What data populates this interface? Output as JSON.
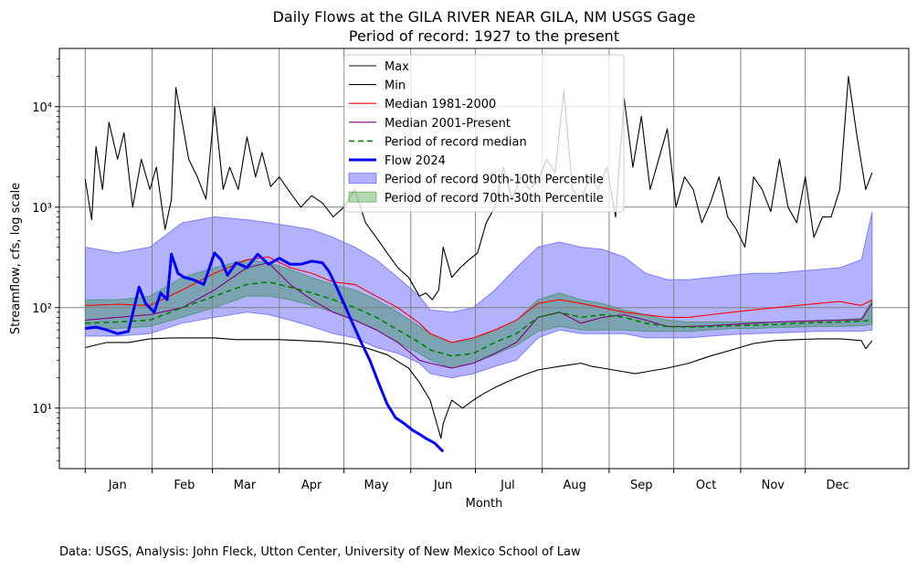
{
  "chart_data": {
    "type": "line",
    "title": "Daily Flows at the GILA RIVER NEAR GILA, NM USGS Gage",
    "subtitle": "Period of record: 1927 to the present",
    "xlabel": "Month",
    "ylabel": "Streamflow, cfs, log scale",
    "y_scale": "log",
    "ylim": [
      2.5,
      38000
    ],
    "xlim": [
      -12,
      382
    ],
    "grid": true,
    "legend_position": "top-center",
    "month_ticks": [
      "Jan",
      "Feb",
      "Mar",
      "Apr",
      "May",
      "Jun",
      "Jul",
      "Aug",
      "Sep",
      "Oct",
      "Nov",
      "Dec"
    ],
    "month_tick_days": [
      15,
      46,
      74,
      105,
      135,
      166,
      196,
      227,
      258,
      288,
      319,
      349
    ],
    "month_boundaries": [
      0,
      31,
      59,
      90,
      120,
      151,
      181,
      212,
      243,
      273,
      304,
      334
    ],
    "y_tick_labels": [
      "10¹",
      "10²",
      "10³",
      "10⁴"
    ],
    "y_tick_values": [
      10,
      100,
      1000,
      10000
    ],
    "colors": {
      "max": "#000000",
      "min": "#000000",
      "median_1981_2000": "#ff0000",
      "median_2001_present": "#800080",
      "period_median": "#008000",
      "flow_2024": "#0000ff",
      "band_90_10": "#0000ff",
      "band_70_30": "#008000",
      "grid": "#808080"
    },
    "series": [
      {
        "name": "Max",
        "key": "max",
        "x": [
          0,
          3,
          5,
          8,
          11,
          15,
          18,
          22,
          26,
          30,
          33,
          37,
          40,
          42,
          45,
          48,
          52,
          56,
          60,
          64,
          67,
          71,
          75,
          79,
          82,
          86,
          90,
          95,
          100,
          105,
          110,
          115,
          120,
          125,
          130,
          135,
          140,
          145,
          150,
          155,
          158,
          161,
          164,
          166,
          170,
          174,
          178,
          182,
          186,
          190,
          194,
          198,
          202,
          206,
          210,
          214,
          218,
          222,
          226,
          230,
          234,
          238,
          242,
          246,
          250,
          254,
          258,
          262,
          266,
          270,
          274,
          278,
          282,
          286,
          290,
          294,
          298,
          302,
          306,
          310,
          314,
          318,
          322,
          326,
          330,
          334,
          338,
          342,
          346,
          350,
          354,
          358,
          362,
          365
        ],
        "y": [
          1900,
          750,
          4000,
          1500,
          7000,
          3000,
          5500,
          1000,
          3000,
          1500,
          2500,
          600,
          1200,
          15500,
          7000,
          3000,
          2000,
          1200,
          10000,
          1500,
          2500,
          1500,
          5000,
          2000,
          3500,
          1600,
          2000,
          1400,
          1000,
          1300,
          1100,
          800,
          1000,
          1500,
          700,
          500,
          350,
          250,
          200,
          130,
          140,
          120,
          150,
          400,
          200,
          250,
          300,
          350,
          700,
          1000,
          2500,
          1200,
          2000,
          1500,
          1800,
          3000,
          2200,
          14500,
          1500,
          1200,
          2000,
          1500,
          2500,
          800,
          12000,
          2500,
          8000,
          1500,
          3000,
          6000,
          1000,
          2000,
          1500,
          700,
          1100,
          2000,
          800,
          600,
          400,
          2000,
          1500,
          900,
          3000,
          1000,
          700,
          2000,
          500,
          800,
          800,
          1500,
          20000,
          5000,
          1500,
          2200
        ]
      },
      {
        "name": "Min",
        "key": "min",
        "x": [
          0,
          10,
          20,
          30,
          40,
          50,
          60,
          70,
          80,
          90,
          100,
          110,
          120,
          130,
          140,
          150,
          155,
          160,
          165,
          166,
          170,
          175,
          180,
          185,
          190,
          195,
          200,
          205,
          210,
          215,
          220,
          225,
          230,
          235,
          240,
          245,
          250,
          255,
          260,
          270,
          280,
          290,
          300,
          310,
          320,
          330,
          340,
          350,
          360,
          362,
          365
        ],
        "y": [
          40,
          45,
          45,
          49,
          50,
          50,
          50,
          48,
          48,
          48,
          47,
          46,
          44,
          40,
          34,
          25,
          18,
          12,
          5,
          7,
          12,
          10,
          12,
          14,
          16,
          18,
          20,
          22,
          24,
          25,
          26,
          27,
          28,
          26,
          25,
          24,
          23,
          22,
          23,
          25,
          28,
          33,
          38,
          44,
          47,
          48,
          49,
          49,
          47,
          39,
          47
        ]
      },
      {
        "name": "Median 1981-2000",
        "key": "median_1981_2000",
        "x": [
          0,
          15,
          30,
          45,
          60,
          75,
          85,
          95,
          105,
          115,
          125,
          135,
          145,
          155,
          160,
          170,
          180,
          190,
          200,
          210,
          220,
          230,
          240,
          250,
          260,
          270,
          280,
          290,
          300,
          310,
          320,
          330,
          340,
          350,
          360,
          365
        ],
        "y": [
          105,
          108,
          105,
          150,
          220,
          300,
          320,
          250,
          220,
          180,
          170,
          130,
          100,
          70,
          55,
          45,
          50,
          60,
          75,
          110,
          120,
          110,
          100,
          90,
          85,
          80,
          80,
          85,
          90,
          95,
          100,
          105,
          110,
          115,
          105,
          120
        ]
      },
      {
        "name": "Median 2001-Present",
        "key": "median_2001_present",
        "x": [
          0,
          15,
          30,
          45,
          60,
          75,
          85,
          95,
          105,
          115,
          125,
          135,
          145,
          155,
          160,
          170,
          180,
          190,
          200,
          210,
          220,
          230,
          240,
          250,
          260,
          270,
          280,
          290,
          300,
          310,
          320,
          330,
          340,
          350,
          360,
          365
        ],
        "y": [
          75,
          80,
          85,
          100,
          150,
          250,
          280,
          170,
          120,
          90,
          75,
          60,
          45,
          30,
          28,
          25,
          28,
          35,
          45,
          80,
          90,
          70,
          80,
          85,
          75,
          65,
          65,
          66,
          68,
          70,
          72,
          73,
          74,
          75,
          76,
          110
        ]
      },
      {
        "name": "Period of record median",
        "key": "period_median",
        "x": [
          0,
          15,
          30,
          45,
          60,
          75,
          85,
          95,
          105,
          115,
          125,
          135,
          145,
          155,
          160,
          170,
          180,
          190,
          200,
          210,
          220,
          230,
          240,
          250,
          260,
          270,
          280,
          290,
          300,
          310,
          320,
          330,
          340,
          350,
          360,
          365
        ],
        "y": [
          70,
          72,
          75,
          100,
          130,
          170,
          180,
          160,
          140,
          120,
          100,
          80,
          60,
          45,
          38,
          33,
          35,
          45,
          55,
          80,
          90,
          80,
          85,
          80,
          70,
          65,
          64,
          65,
          66,
          67,
          68,
          70,
          71,
          72,
          73,
          75
        ]
      },
      {
        "name": "Flow 2024",
        "key": "flow_2024",
        "x": [
          0,
          5,
          10,
          15,
          20,
          25,
          28,
          32,
          35,
          38,
          40,
          43,
          46,
          50,
          55,
          60,
          63,
          66,
          70,
          75,
          80,
          85,
          90,
          95,
          100,
          105,
          110,
          113,
          116,
          120,
          124,
          128,
          132,
          136,
          140,
          144,
          148,
          152,
          155,
          158,
          162,
          166
        ],
        "y": [
          62,
          64,
          60,
          55,
          58,
          160,
          110,
          90,
          140,
          120,
          340,
          220,
          200,
          190,
          170,
          350,
          300,
          210,
          280,
          250,
          340,
          270,
          310,
          270,
          270,
          290,
          280,
          230,
          170,
          110,
          70,
          45,
          30,
          18,
          11,
          8,
          7,
          6,
          5.5,
          5,
          4.5,
          3.7
        ]
      }
    ],
    "bands": [
      {
        "name": "Period of record 90th-10th Percentile",
        "key": "band_90_10",
        "x": [
          0,
          15,
          30,
          45,
          60,
          75,
          85,
          95,
          105,
          115,
          125,
          135,
          145,
          155,
          160,
          170,
          180,
          190,
          200,
          210,
          220,
          230,
          240,
          250,
          260,
          270,
          280,
          290,
          300,
          310,
          320,
          330,
          340,
          350,
          360,
          365
        ],
        "upper": [
          400,
          350,
          400,
          700,
          800,
          750,
          700,
          650,
          600,
          500,
          400,
          300,
          200,
          130,
          95,
          90,
          100,
          150,
          250,
          400,
          450,
          400,
          380,
          320,
          220,
          190,
          190,
          200,
          210,
          220,
          220,
          230,
          240,
          250,
          300,
          900
        ],
        "lower": [
          52,
          52,
          55,
          70,
          80,
          90,
          85,
          75,
          65,
          55,
          50,
          40,
          35,
          28,
          22,
          20,
          22,
          26,
          30,
          50,
          60,
          55,
          55,
          55,
          50,
          50,
          50,
          52,
          54,
          55,
          56,
          57,
          58,
          58,
          58,
          60
        ]
      },
      {
        "name": "Period of record 70th-30th Percentile",
        "key": "band_70_30",
        "x": [
          0,
          15,
          30,
          45,
          60,
          75,
          85,
          95,
          105,
          115,
          125,
          135,
          145,
          155,
          160,
          170,
          180,
          190,
          200,
          210,
          220,
          230,
          240,
          250,
          260,
          270,
          280,
          290,
          300,
          310,
          320,
          330,
          340,
          350,
          360,
          365
        ],
        "upper": [
          120,
          120,
          130,
          200,
          250,
          300,
          280,
          240,
          200,
          170,
          150,
          120,
          90,
          65,
          55,
          45,
          48,
          60,
          75,
          120,
          140,
          120,
          110,
          95,
          85,
          75,
          72,
          72,
          72,
          72,
          72,
          73,
          75,
          76,
          78,
          120
        ],
        "lower": [
          62,
          62,
          65,
          80,
          100,
          130,
          130,
          120,
          105,
          90,
          75,
          60,
          45,
          35,
          30,
          25,
          28,
          34,
          42,
          58,
          65,
          60,
          60,
          60,
          58,
          58,
          58,
          60,
          62,
          62,
          63,
          64,
          65,
          65,
          66,
          68
        ]
      }
    ],
    "legend": [
      "Max",
      "Min",
      "Median 1981-2000",
      "Median 2001-Present",
      "Period of record median",
      "Flow 2024",
      "Period of record 90th-10th Percentile",
      "Period of record 70th-30th Percentile"
    ]
  },
  "footer": {
    "note": "Data: USGS, Analysis: John Fleck, Utton Center, University of New Mexico School of Law"
  }
}
